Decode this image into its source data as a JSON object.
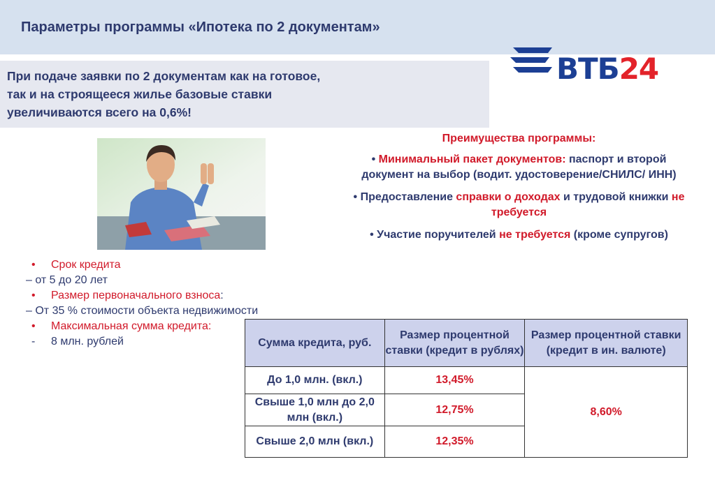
{
  "header": {
    "title": "Параметры программы «Ипотека по 2 документам»"
  },
  "logo": {
    "vtb": "ВТБ",
    "num": "24"
  },
  "intro": {
    "lines": [
      "При подаче заявки по 2 документам как на готовое,",
      "так и на строящееся жилье базовые ставки",
      "увеличиваются всего на 0,6%!"
    ]
  },
  "advantages": {
    "title": "Преимущества программы:",
    "item1": {
      "bullet": "•",
      "highlight": "Минимальный пакет документов:",
      "rest": " паспорт и второй документ на выбор (водит. удостоверение/СНИЛС/ ИНН)"
    },
    "item2": {
      "bullet": "•",
      "p1": "Предоставление ",
      "h1": "справки о доходах",
      "p2": " и трудовой книжки ",
      "h2": "не требуется"
    },
    "item3": {
      "bullet": "•",
      "p1": "Участие поручителей ",
      "h1": "не требуется",
      "p2": " (кроме супругов)"
    }
  },
  "params": {
    "rows": [
      {
        "bullet": "•",
        "label": "Срок кредита",
        "suffix": ""
      },
      {
        "text": "– от 5 до 20 лет"
      },
      {
        "bullet": "•",
        "label": "Размер первоначального взноса",
        "suffix": ":"
      },
      {
        "text": "– От 35 % стоимости объекта недвижимости"
      },
      {
        "bullet": "•",
        "label": "Максимальная сумма кредита:",
        "suffix": ""
      },
      {
        "dash": "-",
        "text": "8 млн. рублей"
      }
    ]
  },
  "rates_table": {
    "headers": [
      "Сумма кредита, руб.",
      "Размер процентной ставки (кредит в рублях)",
      "Размер процентной ставки (кредит в ин. валюте)"
    ],
    "rows": [
      {
        "amount": "До 1,0 млн. (вкл.)",
        "rub_rate": "13,45%"
      },
      {
        "amount": "Свыше 1,0 млн до 2,0 млн (вкл.)",
        "rub_rate": "12,75%"
      },
      {
        "amount": "Свыше 2,0 млн (вкл.)",
        "rub_rate": "12,35%"
      }
    ],
    "fx_rate": "8,60%"
  },
  "colors": {
    "brand_blue": "#1c3f94",
    "brand_red": "#e3232a",
    "accent_red": "#d11a2a",
    "text_navy": "#2e3a6e"
  }
}
